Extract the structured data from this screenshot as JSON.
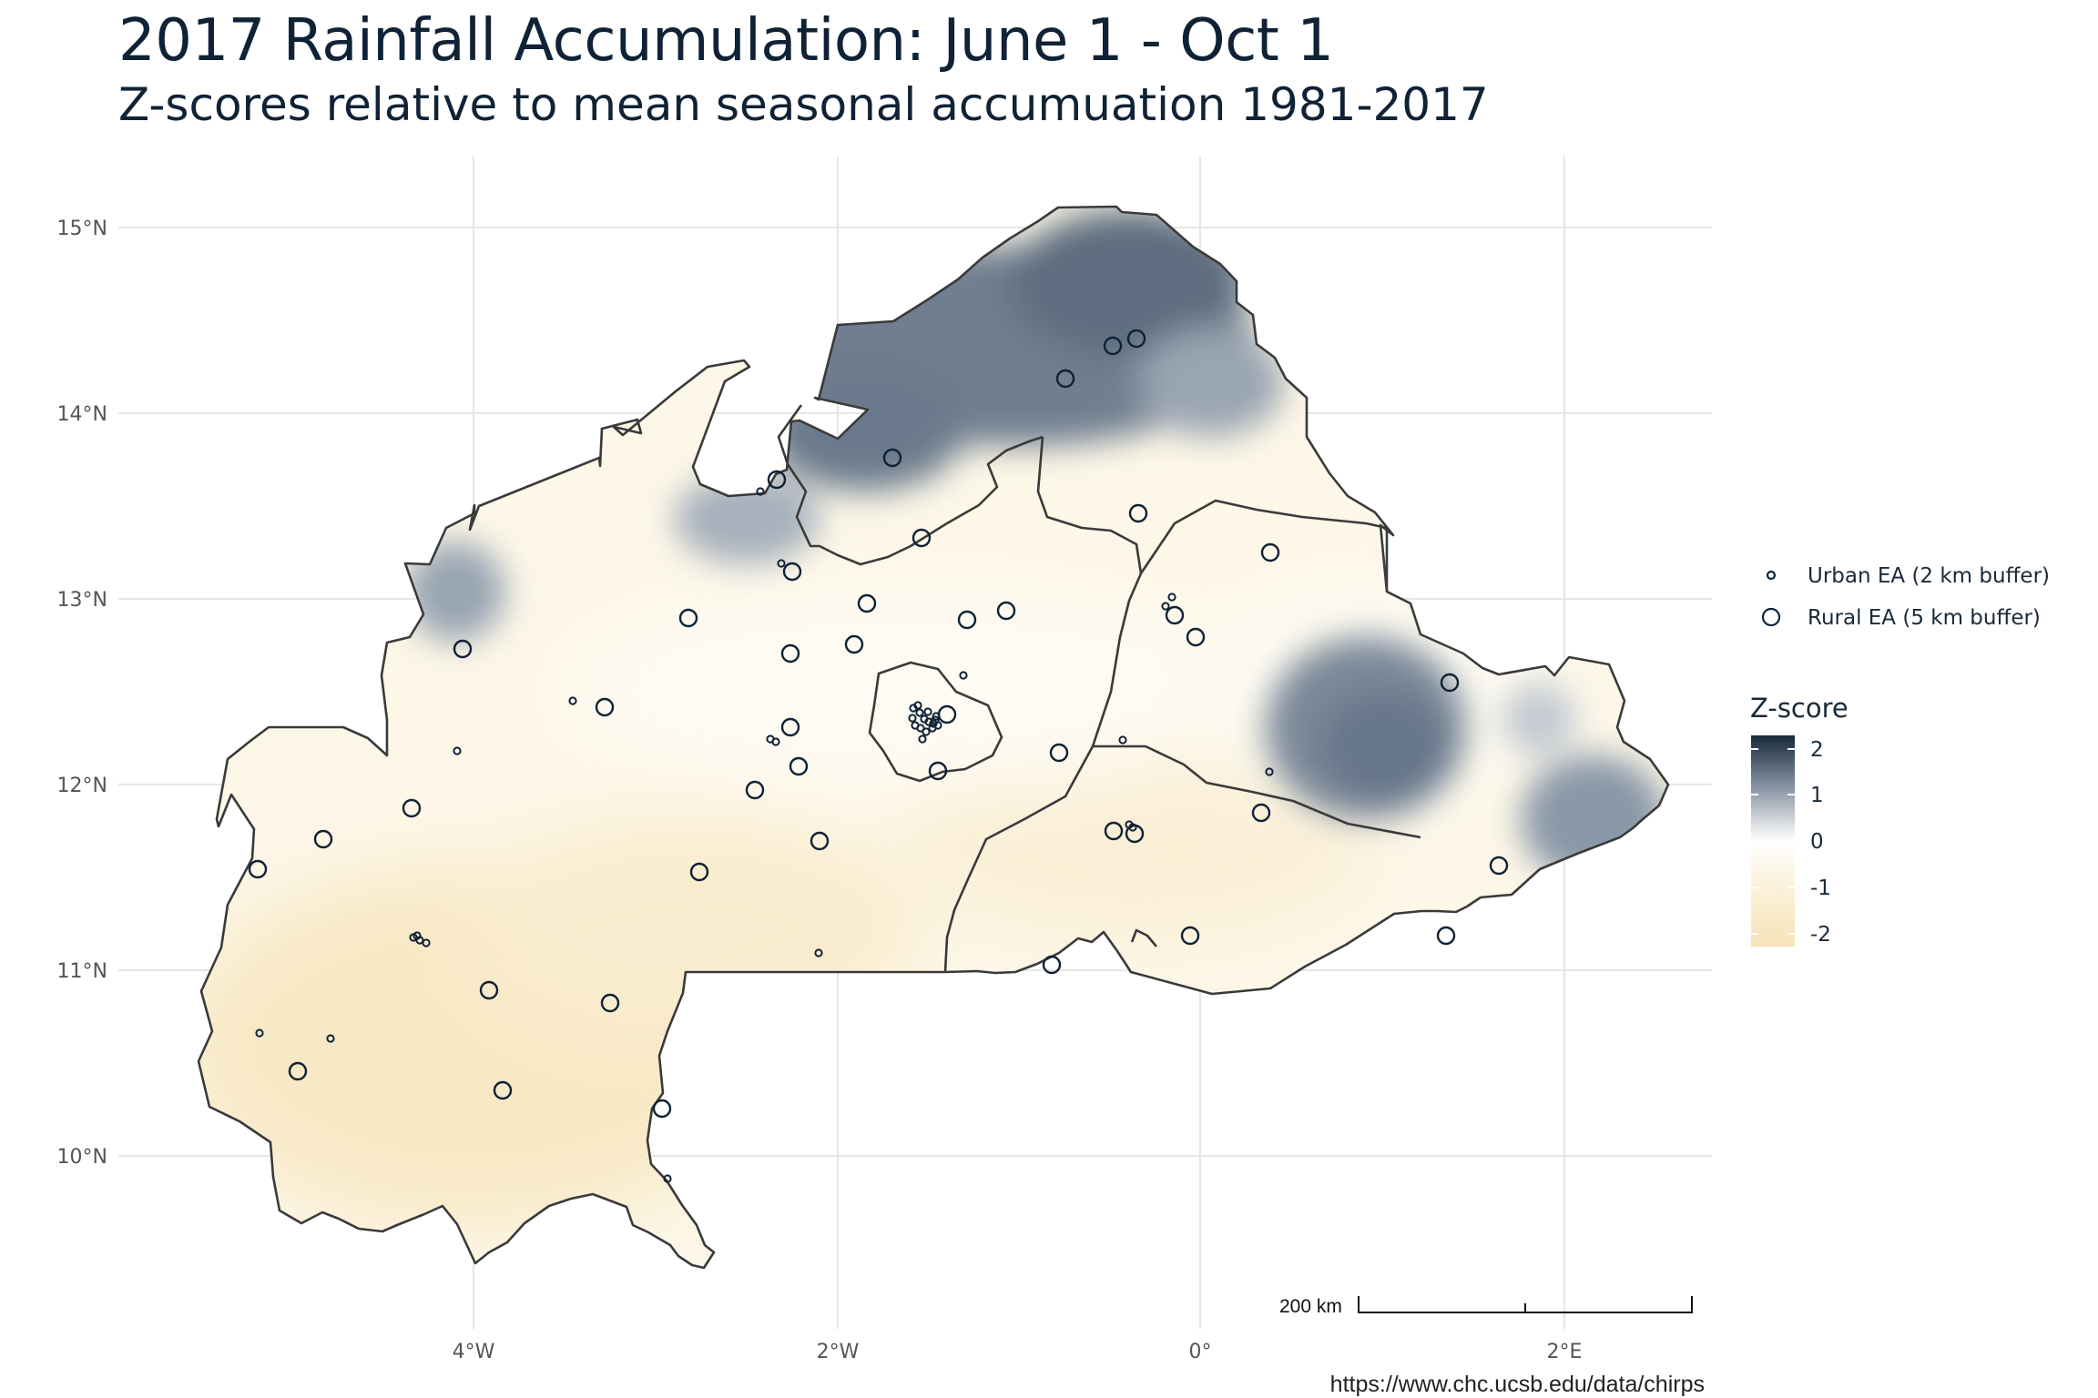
{
  "title": "2017 Rainfall Accumulation: June 1 - Oct 1",
  "subtitle": "Z-scores relative to mean seasonal accumuation 1981-2017",
  "caption": "https://www.chc.ucsb.edu/data/chirps",
  "axes": {
    "lat_labels": [
      "15°N",
      "14°N",
      "13°N",
      "12°N",
      "11°N",
      "10°N"
    ],
    "lon_labels": [
      "4°W",
      "2°W",
      "0°",
      "2°E"
    ]
  },
  "legend": {
    "points": [
      {
        "label": "Urban EA (2 km buffer)",
        "shape": "small-circle"
      },
      {
        "label": "Rural EA (5 km buffer)",
        "shape": "large-circle"
      }
    ],
    "colorbar_title": "Z-score",
    "colorbar_ticks": [
      "2",
      "1",
      "0",
      "-1",
      "-2"
    ],
    "colors": {
      "high": "#17293a",
      "mid": "#ffffff",
      "low": "#f5e3b8"
    }
  },
  "scalebar": {
    "label": "200 km"
  },
  "colors": {
    "border": "#3a3a3a",
    "grid": "#e6e6e6",
    "point_stroke": "#102235"
  }
}
